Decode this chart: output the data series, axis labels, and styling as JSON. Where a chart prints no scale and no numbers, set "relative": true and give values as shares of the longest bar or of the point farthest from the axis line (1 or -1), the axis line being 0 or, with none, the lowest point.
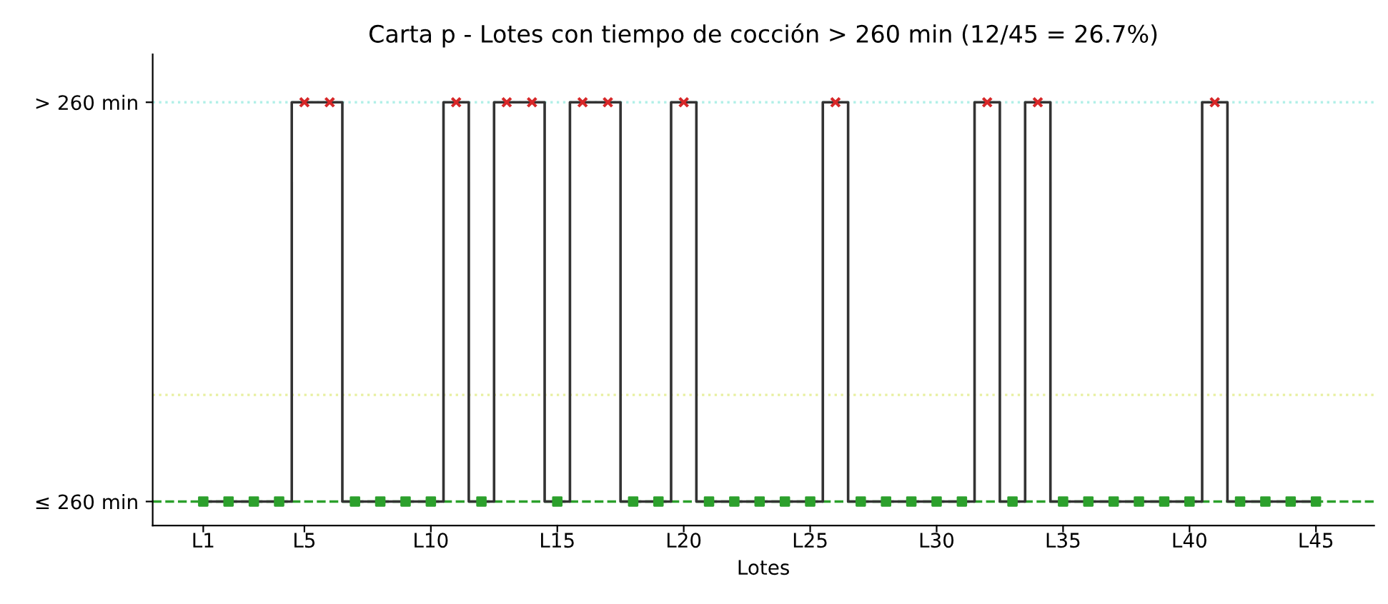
{
  "chart_data": {
    "type": "step",
    "title": "Carta p - Lotes con tiempo de cocción > 260 min (12/45 = 26.7%)",
    "xlabel": "Lotes",
    "relative": true,
    "categories": [
      "L1",
      null,
      null,
      null,
      "L5",
      null,
      null,
      null,
      null,
      "L10",
      null,
      null,
      null,
      null,
      "L15",
      null,
      null,
      null,
      null,
      "L20",
      null,
      null,
      null,
      null,
      "L25",
      null,
      null,
      null,
      null,
      "L30",
      null,
      null,
      null,
      null,
      "L35",
      null,
      null,
      null,
      null,
      "L40",
      null,
      null,
      null,
      null,
      "L45"
    ],
    "series": [
      {
        "color": "#333333",
        "marker": "none",
        "values": [
          0,
          0,
          0,
          0,
          1,
          1,
          0,
          0,
          0,
          0,
          1,
          0,
          1,
          1,
          0,
          1,
          1,
          0,
          0,
          1,
          0,
          0,
          0,
          0,
          0,
          1,
          0,
          0,
          0,
          0,
          0,
          1,
          0,
          1,
          0,
          0,
          0,
          0,
          0,
          0,
          1,
          0,
          0,
          0,
          0
        ]
      },
      {
        "type": "scatter",
        "color": "#d62728",
        "marker": "cross",
        "values": [
          null,
          null,
          null,
          null,
          1,
          1,
          null,
          null,
          null,
          null,
          1,
          null,
          1,
          1,
          null,
          1,
          1,
          null,
          null,
          1,
          null,
          null,
          null,
          null,
          null,
          1,
          null,
          null,
          null,
          null,
          null,
          1,
          null,
          1,
          null,
          null,
          null,
          null,
          null,
          null,
          1,
          null,
          null,
          null,
          null
        ]
      },
      {
        "type": "scatter",
        "color": "#2ca02c",
        "marker": "square",
        "values": [
          0,
          0,
          0,
          0,
          null,
          null,
          0,
          0,
          0,
          0,
          null,
          0,
          null,
          null,
          0,
          null,
          null,
          0,
          0,
          null,
          0,
          0,
          0,
          0,
          0,
          null,
          0,
          0,
          0,
          0,
          0,
          null,
          0,
          null,
          0,
          0,
          0,
          0,
          0,
          0,
          null,
          0,
          0,
          0,
          0
        ]
      }
    ],
    "annotations": [
      "> 260 min",
      "≤ 260 min"
    ],
    "ref_lines": [
      {
        "axis": "y",
        "value": 1,
        "color": "#b2f0e8",
        "line_style": "dotted"
      },
      {
        "axis": "y",
        "value": 0.267,
        "color": "#e8f0a0",
        "line_style": "dotted"
      },
      {
        "axis": "y",
        "value": 0,
        "color": "#2ca02c",
        "line_style": "dashed"
      }
    ],
    "grid": false,
    "legend": false
  }
}
